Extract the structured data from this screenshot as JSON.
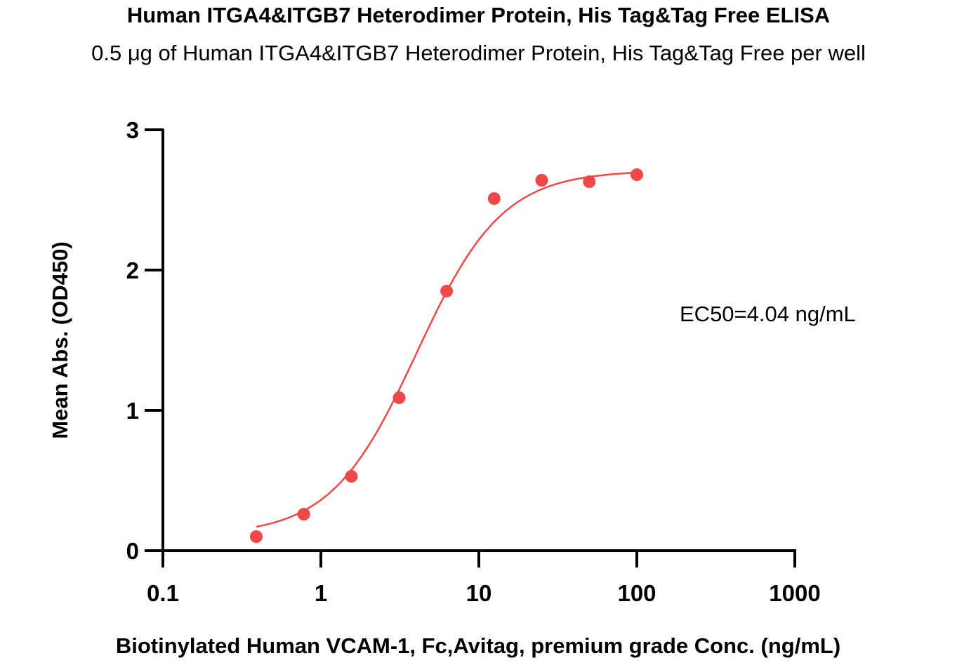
{
  "chart_data": {
    "type": "scatter",
    "title": "Human ITGA4&ITGB7 Heterodimer Protein, His Tag&Tag Free ELISA",
    "subtitle": "0.5 μg of Human ITGA4&ITGB7 Heterodimer Protein, His Tag&Tag Free per well",
    "xlabel": "Biotinylated Human VCAM-1, Fc,Avitag, premium grade Conc. (ng/mL)",
    "ylabel": "Mean Abs. (OD450)",
    "xscale": "log",
    "xlim": [
      0.1,
      1000
    ],
    "ylim": [
      0,
      3
    ],
    "xticks": [
      0.1,
      1,
      10,
      100,
      1000
    ],
    "xtick_labels": [
      "0.1",
      "1",
      "10",
      "100",
      "1000"
    ],
    "yticks": [
      0,
      1,
      2,
      3
    ],
    "ytick_labels": [
      "0",
      "1",
      "2",
      "3"
    ],
    "grid": false,
    "series": [
      {
        "color": "#f04848",
        "points": [
          {
            "x": 0.39,
            "y": 0.1
          },
          {
            "x": 0.78,
            "y": 0.26
          },
          {
            "x": 1.56,
            "y": 0.53
          },
          {
            "x": 3.13,
            "y": 1.09
          },
          {
            "x": 6.25,
            "y": 1.85
          },
          {
            "x": 12.5,
            "y": 2.51
          },
          {
            "x": 25,
            "y": 2.64
          },
          {
            "x": 50,
            "y": 2.63
          },
          {
            "x": 100,
            "y": 2.68
          }
        ],
        "fit": {
          "model": "4PL",
          "bottom": 0.11,
          "top": 2.71,
          "ec50": 4.04,
          "hill": 1.6,
          "x_range": [
            0.39,
            100
          ]
        }
      }
    ],
    "annotations": [
      {
        "text": "EC50=4.04 ng/mL"
      }
    ]
  }
}
